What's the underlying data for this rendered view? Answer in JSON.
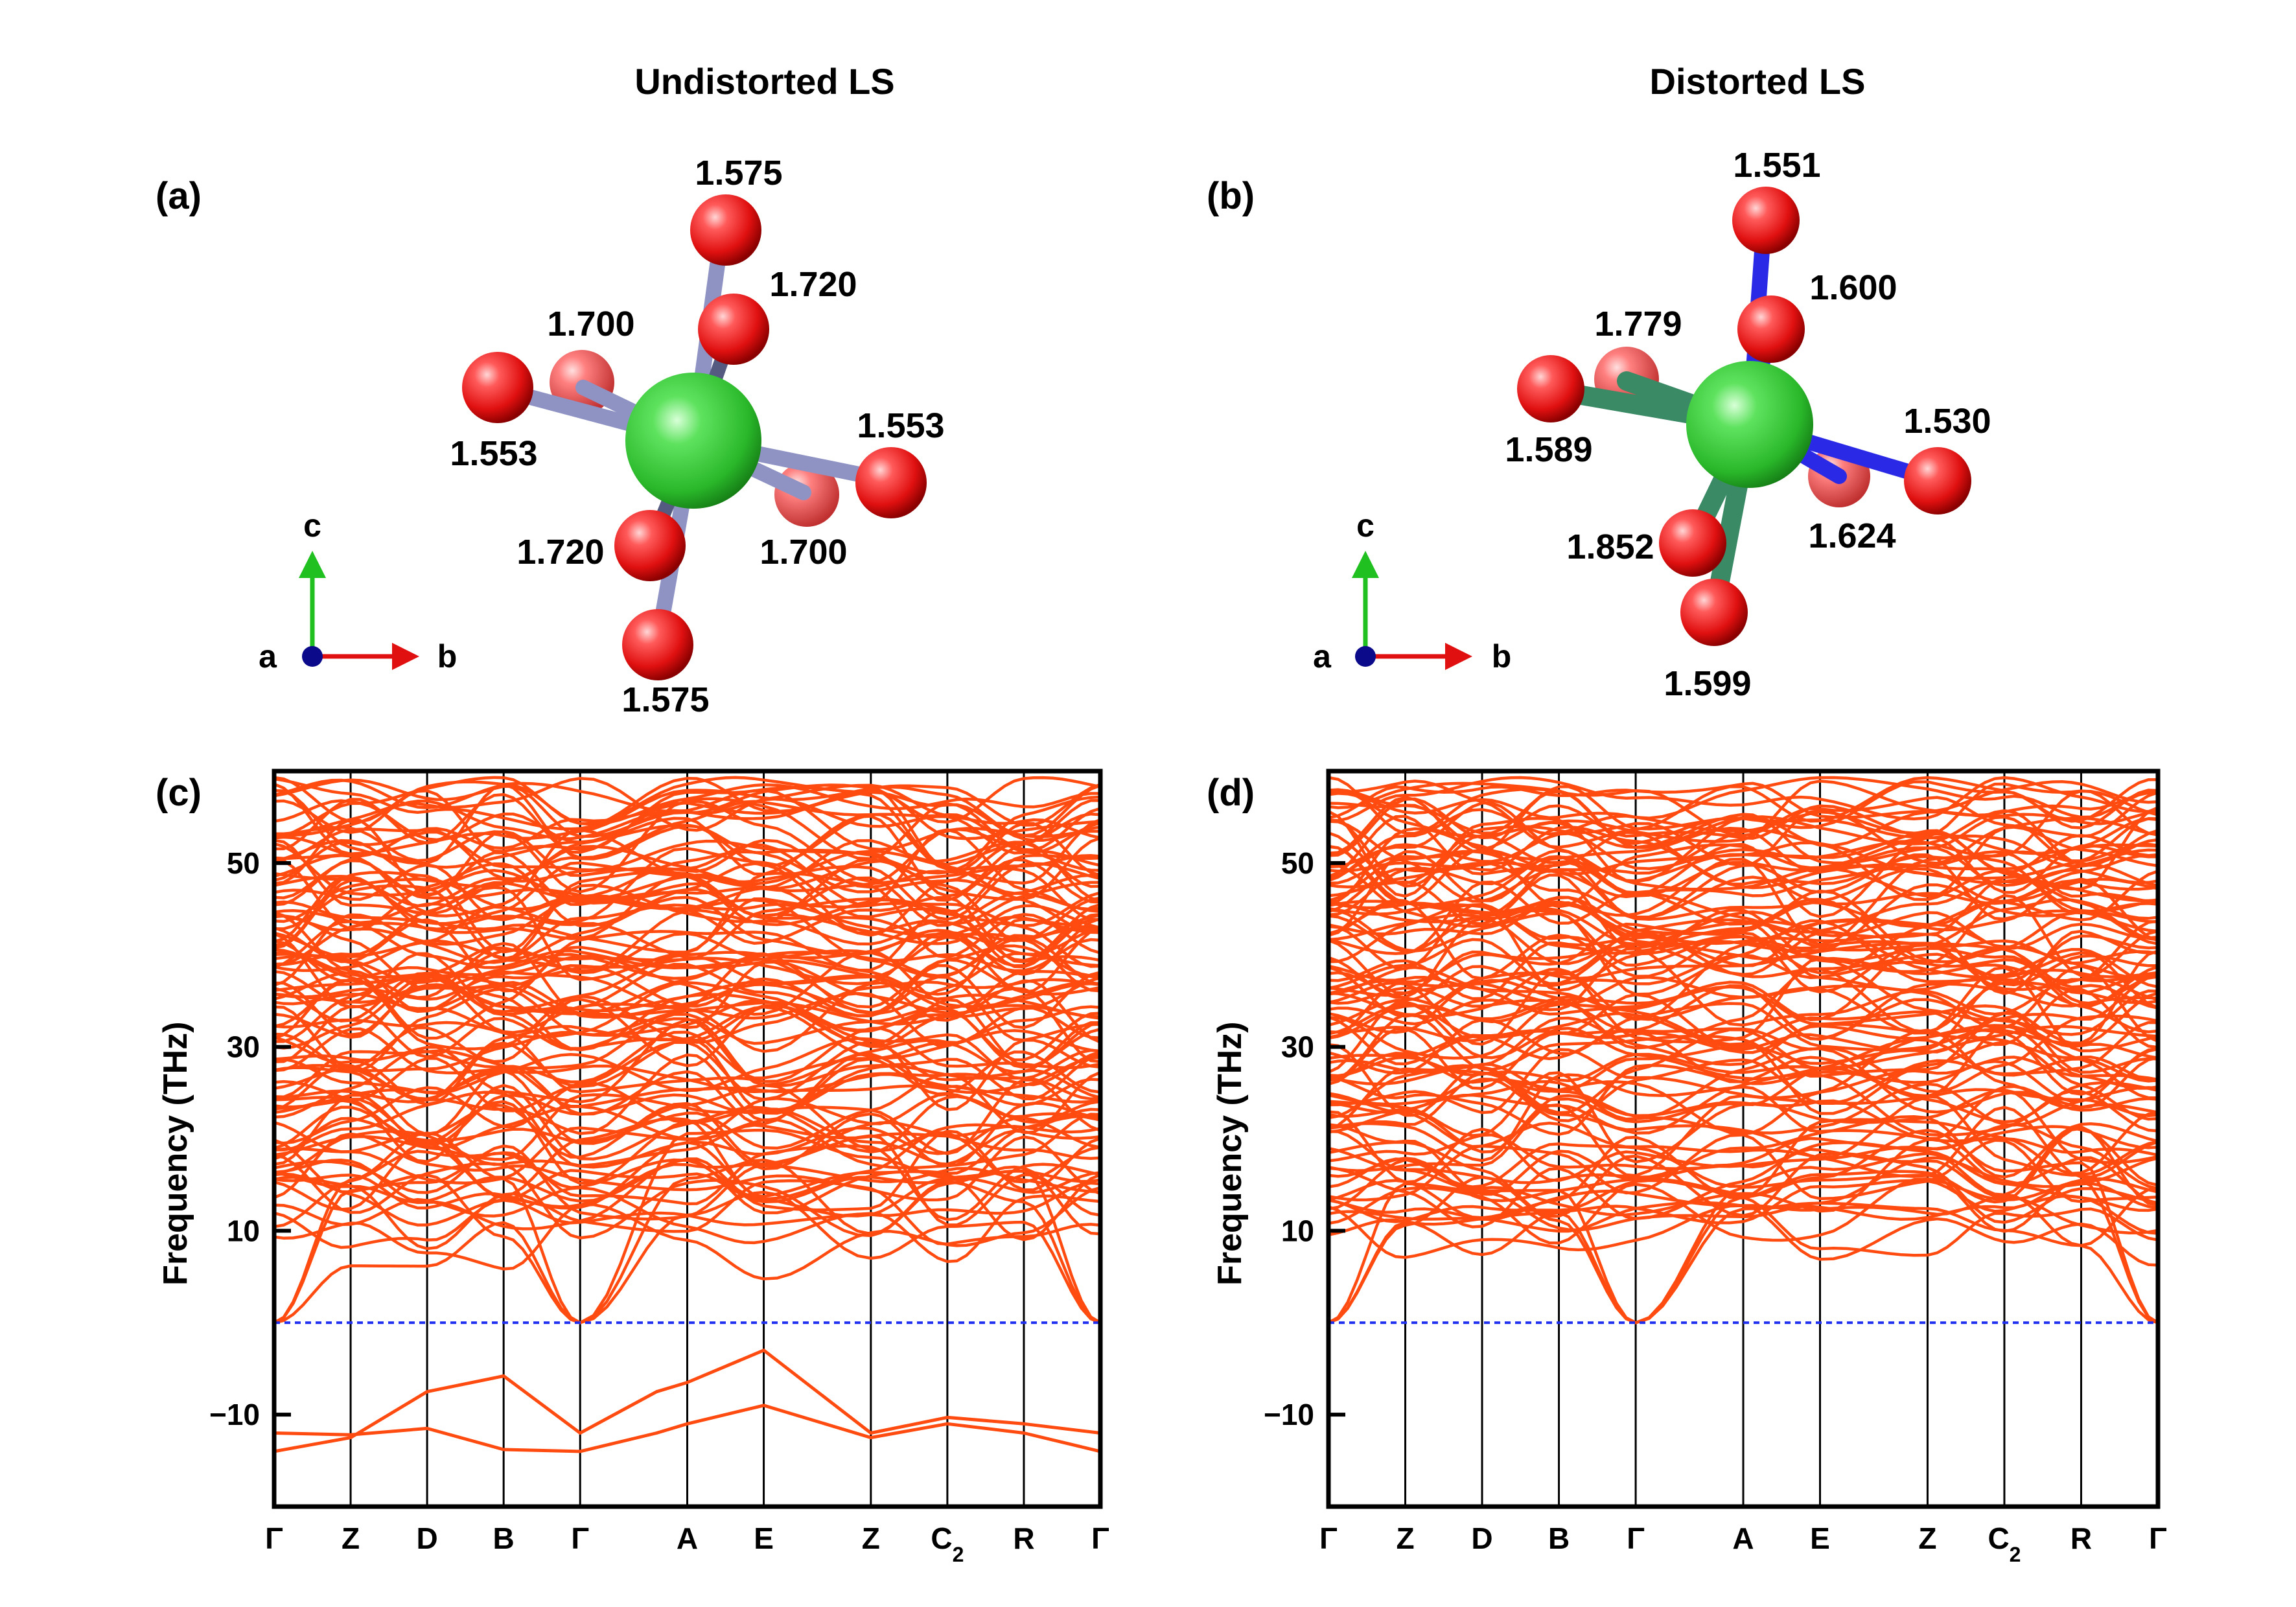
{
  "figure": {
    "col_titles": [
      "Undistorted LS",
      "Distorted LS"
    ],
    "panel_labels": [
      "(a)",
      "(b)",
      "(c)",
      "(d)"
    ]
  },
  "structures": [
    {
      "panel": "(a)",
      "title": "Undistorted LS",
      "bond_lengths": [
        "1.575",
        "1.720",
        "1.700",
        "1.553",
        "1.553",
        "1.720",
        "1.700",
        "1.575"
      ],
      "axes": {
        "a": "a",
        "b": "b",
        "c": "c"
      },
      "colors": {
        "center_atom": "#35c935",
        "oxygen": "#e01818",
        "bond": "#8f93c4"
      }
    },
    {
      "panel": "(b)",
      "title": "Distorted LS",
      "bond_lengths": [
        "1.551",
        "1.600",
        "1.779",
        "1.589",
        "1.530",
        "1.852",
        "1.624",
        "1.599"
      ],
      "axes": {
        "a": "a",
        "b": "b",
        "c": "c"
      },
      "colors": {
        "center_atom": "#35c935",
        "oxygen": "#e01818",
        "bond_short": "#2a2ae6",
        "bond_long": "#3a8a66"
      }
    }
  ],
  "chart_data": [
    {
      "type": "line",
      "panel": "(c)",
      "title": "",
      "ylabel": "Frequency (THz)",
      "ylim": [
        -20,
        60
      ],
      "yticks": [
        -10,
        10,
        30,
        50
      ],
      "ytick_labels": [
        "−10",
        "10",
        "30",
        "50"
      ],
      "kpoints": [
        "Γ",
        "Z",
        "D",
        "B",
        "Γ",
        "A",
        "E",
        "Z",
        "C",
        "R",
        "Γ"
      ],
      "kpoint_positions": [
        0,
        1,
        2,
        3,
        4,
        5.4,
        6.4,
        7.8,
        8.8,
        9.8,
        10.8
      ],
      "subscript": {
        "index": 8,
        "text": "2"
      },
      "zero_line": 0,
      "line_color": "#ff4a10",
      "zero_line_color": "#1f2ff0",
      "imaginary_modes": [
        {
          "x": [
            0,
            1,
            2,
            3,
            4,
            5,
            5.4,
            6.4,
            7.8,
            8.8,
            9.8,
            10.8
          ],
          "y": [
            -12,
            -12.2,
            -11.5,
            -13.8,
            -14,
            -12,
            -11,
            -9,
            -12.5,
            -11,
            -12,
            -14
          ]
        },
        {
          "x": [
            0,
            1,
            2,
            3,
            4,
            5,
            5.4,
            6.4,
            7.8,
            8.8,
            9.8,
            10.8
          ],
          "y": [
            -14,
            -12.5,
            -7.5,
            -5.8,
            -12,
            -7.5,
            -6.5,
            -3,
            -12,
            -10.3,
            -11,
            -12
          ]
        }
      ]
    },
    {
      "type": "line",
      "panel": "(d)",
      "title": "",
      "ylabel": "Frequency (THz)",
      "ylim": [
        -20,
        60
      ],
      "yticks": [
        -10,
        10,
        30,
        50
      ],
      "ytick_labels": [
        "−10",
        "10",
        "30",
        "50"
      ],
      "kpoints": [
        "Γ",
        "Z",
        "D",
        "B",
        "Γ",
        "A",
        "E",
        "Z",
        "C",
        "R",
        "Γ"
      ],
      "kpoint_positions": [
        0,
        1,
        2,
        3,
        4,
        5.4,
        6.4,
        7.8,
        8.8,
        9.8,
        10.8
      ],
      "subscript": {
        "index": 8,
        "text": "2"
      },
      "zero_line": 0,
      "line_color": "#ff4a10",
      "zero_line_color": "#1f2ff0",
      "imaginary_modes": []
    }
  ]
}
